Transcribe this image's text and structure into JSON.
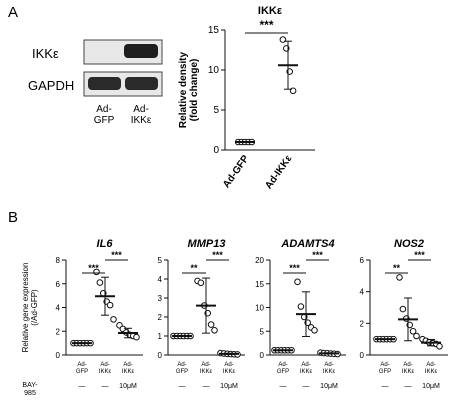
{
  "panels": {
    "a_label": "A",
    "b_label": "B"
  },
  "blot": {
    "rows": [
      "IKKε",
      "GAPDH"
    ],
    "lanes": [
      "Ad-\nGFP",
      "Ad-\nIKKε"
    ]
  },
  "chart_data": [
    {
      "type": "scatter",
      "title": "IKKε",
      "ylabel": "Relative density\n(fold change)",
      "categories": [
        "Ad-GFP",
        "Ad-IKKε"
      ],
      "ylim": [
        0,
        15
      ],
      "yticks": [
        "0",
        "5",
        "10",
        "15"
      ],
      "means": [
        1.0,
        10.6
      ],
      "sd": [
        0.0,
        3.0
      ],
      "points": [
        [
          1.0,
          1.0,
          1.0,
          1.0,
          1.0
        ],
        [
          13.8,
          12.7,
          9.8,
          7.4
        ]
      ],
      "significance": "***"
    },
    {
      "type": "scatter",
      "title": "IL6",
      "ylabel": "Relative gene expression\n(/Ad-GFP)",
      "categories": [
        "Ad-GFP",
        "Ad-IKKε",
        "Ad-IKKε"
      ],
      "ylim": [
        0,
        8
      ],
      "yticks": [
        "0",
        "2",
        "4",
        "6",
        "8"
      ],
      "means": [
        1.0,
        4.95,
        1.85
      ],
      "sd": [
        0.0,
        1.6,
        0.4
      ],
      "points": [
        [
          1.0,
          1.0,
          1.0,
          1.0,
          1.0,
          1.0
        ],
        [
          7.0,
          6.1,
          5.2,
          4.5,
          4.2,
          3.0
        ],
        [
          2.5,
          2.2,
          1.9,
          1.7,
          1.6,
          1.5
        ]
      ],
      "significance": [
        "***",
        "***"
      ]
    },
    {
      "type": "scatter",
      "title": "MMP13",
      "categories": [
        "Ad-GFP",
        "Ad-IKKε",
        "Ad-IKKε"
      ],
      "ylim": [
        0,
        5
      ],
      "yticks": [
        "0",
        "1",
        "2",
        "3",
        "4",
        "5"
      ],
      "means": [
        1.0,
        2.6,
        0.06
      ],
      "sd": [
        0.0,
        1.45,
        0.03
      ],
      "points": [
        [
          1.0,
          1.0,
          1.0,
          1.0,
          1.0,
          1.0
        ],
        [
          3.9,
          3.8,
          2.6,
          2.2,
          1.6,
          1.3
        ],
        [
          0.1,
          0.08,
          0.06,
          0.05,
          0.04,
          0.03
        ]
      ],
      "significance": [
        "**",
        "***"
      ]
    },
    {
      "type": "scatter",
      "title": "ADAMTS4",
      "categories": [
        "Ad-GFP",
        "Ad-IKKε",
        "Ad-IKKε"
      ],
      "ylim": [
        0,
        20
      ],
      "yticks": [
        "0",
        "5",
        "10",
        "15",
        "20"
      ],
      "means": [
        1.0,
        8.6,
        0.35
      ],
      "sd": [
        0.0,
        4.7,
        0.1
      ],
      "points": [
        [
          1.0,
          1.0,
          1.0,
          1.0,
          1.0,
          1.0
        ],
        [
          15.4,
          10.2,
          8.0,
          6.8,
          5.8,
          5.2
        ],
        [
          0.5,
          0.4,
          0.35,
          0.3,
          0.25,
          0.2
        ]
      ],
      "significance": [
        "***",
        "***"
      ]
    },
    {
      "type": "scatter",
      "title": "NOS2",
      "categories": [
        "Ad-GFP",
        "Ad-IKKε",
        "Ad-IKKε"
      ],
      "ylim": [
        0,
        6
      ],
      "yticks": [
        "0",
        "2",
        "4",
        "6"
      ],
      "means": [
        1.0,
        2.25,
        0.78
      ],
      "sd": [
        0.0,
        1.35,
        0.2
      ],
      "points": [
        [
          1.0,
          1.0,
          1.0,
          1.0,
          1.0,
          1.0
        ],
        [
          4.9,
          2.9,
          2.3,
          1.9,
          1.5,
          1.2
        ],
        [
          1.0,
          0.9,
          0.8,
          0.75,
          0.7,
          0.55
        ]
      ],
      "significance": [
        "**",
        "***"
      ]
    }
  ],
  "treatment": {
    "row_label": "BAY-\n985",
    "values": [
      "—",
      "—",
      "10μM"
    ]
  }
}
